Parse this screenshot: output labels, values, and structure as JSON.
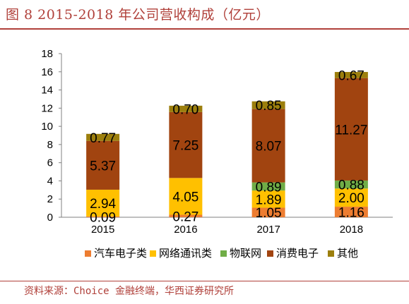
{
  "figure_title": "图 8 2015-2018 年公司营收构成（亿元）",
  "source": "资料来源：Choice 金融终端，华西证券研究所",
  "chart_data": {
    "type": "bar",
    "stacked": true,
    "categories": [
      "2015",
      "2016",
      "2017",
      "2018"
    ],
    "series": [
      {
        "name": "汽车电子类",
        "color": "#ed7d31",
        "values": [
          0.09,
          0.27,
          1.05,
          1.16
        ],
        "labels": [
          "0.09",
          "0.27",
          "1.05",
          "1.16"
        ]
      },
      {
        "name": "网络通讯类",
        "color": "#ffc000",
        "values": [
          2.94,
          4.05,
          1.89,
          2.0
        ],
        "labels": [
          "2.94",
          "4.05",
          "1.89",
          "2.00"
        ]
      },
      {
        "name": "物联网",
        "color": "#70ad47",
        "values": [
          0,
          0,
          0.89,
          0.88
        ],
        "labels": [
          "",
          "",
          "0.89",
          "0.88"
        ]
      },
      {
        "name": "消费电子",
        "color": "#a14410",
        "values": [
          5.37,
          7.25,
          8.07,
          11.27
        ],
        "labels": [
          "5.37",
          "7.25",
          "8.07",
          "11.27"
        ]
      },
      {
        "name": "其他",
        "color": "#9c7f0d",
        "values": [
          0.77,
          0.7,
          0.85,
          0.67
        ],
        "labels": [
          "0.77",
          "0.70",
          "0.85",
          "0.67"
        ]
      }
    ],
    "ylim": [
      0,
      18
    ],
    "yticks": [
      "0",
      "2",
      "4",
      "6",
      "8",
      "10",
      "12",
      "14",
      "16",
      "18"
    ],
    "xlabel": "",
    "ylabel": "",
    "legend_position": "bottom",
    "grid": false
  }
}
